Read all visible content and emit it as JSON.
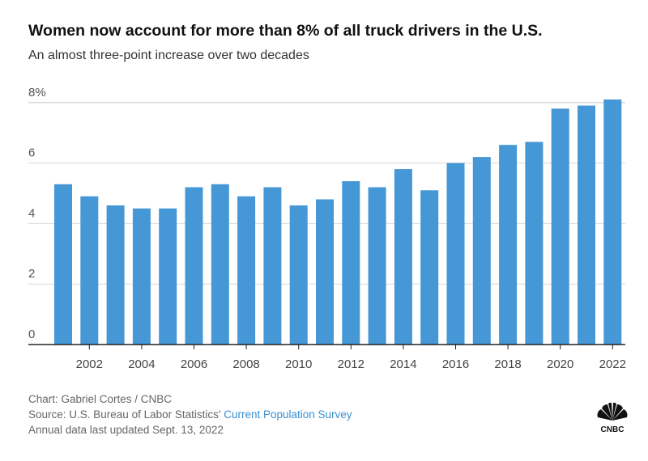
{
  "title": "Women now account for more than 8% of all truck drivers in the U.S.",
  "subtitle": "An almost three-point increase over two decades",
  "footer": {
    "credit": "Chart: Gabriel Cortes / CNBC",
    "source_prefix": "Source: U.S. Bureau of Labor Statistics' ",
    "source_link": "Current Population Survey",
    "updated": "Annual data last updated Sept. 13, 2022"
  },
  "logo": "CNBC",
  "colors": {
    "bar": "#4597d6",
    "grid": "#d9d9d9",
    "axis": "#222222",
    "link": "#3a8fd0"
  },
  "chart_data": {
    "type": "bar",
    "categories": [
      "2001",
      "2002",
      "2003",
      "2004",
      "2005",
      "2006",
      "2007",
      "2008",
      "2009",
      "2010",
      "2011",
      "2012",
      "2013",
      "2014",
      "2015",
      "2016",
      "2017",
      "2018",
      "2019",
      "2020",
      "2021",
      "2022"
    ],
    "values": [
      5.3,
      4.9,
      4.6,
      4.5,
      4.5,
      5.2,
      5.3,
      4.9,
      5.2,
      4.6,
      4.8,
      5.4,
      5.2,
      5.8,
      5.1,
      6.0,
      6.2,
      6.6,
      6.7,
      7.8,
      7.9,
      8.1
    ],
    "ylim": [
      0,
      8.2
    ],
    "yticks": [
      0,
      2,
      4,
      6,
      8
    ],
    "ytick_labels": [
      "0",
      "2",
      "4",
      "6",
      "8%"
    ],
    "xtick_labels": [
      "2002",
      "2004",
      "2006",
      "2008",
      "2010",
      "2012",
      "2014",
      "2016",
      "2018",
      "2020",
      "2022"
    ],
    "grid": true,
    "unit": "%"
  }
}
